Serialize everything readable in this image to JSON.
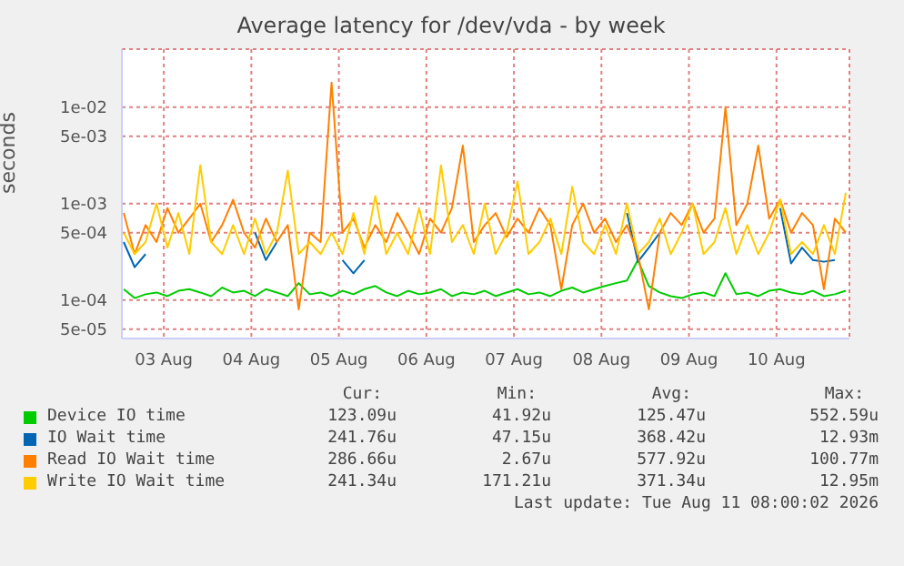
{
  "chart_data": {
    "type": "line",
    "title": "Average latency for /dev/vda - by week",
    "ylabel": "seconds",
    "log": "y",
    "grid": true,
    "legend": "bottom",
    "marker": "none",
    "line_style": "solid",
    "x": [
      "2026-08-03T01:00",
      "2026-08-03T04:00",
      "2026-08-03T07:00",
      "2026-08-03T10:00",
      "2026-08-03T13:00",
      "2026-08-03T16:00",
      "2026-08-03T19:00",
      "2026-08-03T22:00",
      "2026-08-04T01:00",
      "2026-08-04T04:00",
      "2026-08-04T07:00",
      "2026-08-04T10:00",
      "2026-08-04T13:00",
      "2026-08-04T16:00",
      "2026-08-04T19:00",
      "2026-08-04T22:00",
      "2026-08-05T01:00",
      "2026-08-05T04:00",
      "2026-08-05T07:00",
      "2026-08-05T10:00",
      "2026-08-05T13:00",
      "2026-08-05T16:00",
      "2026-08-05T19:00",
      "2026-08-05T22:00",
      "2026-08-06T01:00",
      "2026-08-06T04:00",
      "2026-08-06T07:00",
      "2026-08-06T10:00",
      "2026-08-06T13:00",
      "2026-08-06T16:00",
      "2026-08-06T19:00",
      "2026-08-06T22:00",
      "2026-08-07T01:00",
      "2026-08-07T04:00",
      "2026-08-07T07:00",
      "2026-08-07T10:00",
      "2026-08-07T13:00",
      "2026-08-07T16:00",
      "2026-08-07T19:00",
      "2026-08-07T22:00",
      "2026-08-08T01:00",
      "2026-08-08T04:00",
      "2026-08-08T07:00",
      "2026-08-08T10:00",
      "2026-08-08T13:00",
      "2026-08-08T16:00",
      "2026-08-08T19:00",
      "2026-08-08T22:00",
      "2026-08-09T01:00",
      "2026-08-09T04:00",
      "2026-08-09T07:00",
      "2026-08-09T10:00",
      "2026-08-09T13:00",
      "2026-08-09T16:00",
      "2026-08-09T19:00",
      "2026-08-09T22:00",
      "2026-08-10T01:00",
      "2026-08-10T04:00",
      "2026-08-10T07:00",
      "2026-08-10T10:00",
      "2026-08-10T13:00",
      "2026-08-10T16:00",
      "2026-08-10T19:00",
      "2026-08-10T22:00",
      "2026-08-11T01:00",
      "2026-08-11T04:00",
      "2026-08-11T07:00"
    ],
    "xlim": [
      "2026-08-03T00:30",
      "2026-08-11T08:00"
    ],
    "xticks": [
      {
        "value": "2026-08-03T12:00",
        "label": "03 Aug"
      },
      {
        "value": "2026-08-04T12:00",
        "label": "04 Aug"
      },
      {
        "value": "2026-08-05T12:00",
        "label": "05 Aug"
      },
      {
        "value": "2026-08-06T12:00",
        "label": "06 Aug"
      },
      {
        "value": "2026-08-07T12:00",
        "label": "07 Aug"
      },
      {
        "value": "2026-08-08T12:00",
        "label": "08 Aug"
      },
      {
        "value": "2026-08-09T12:00",
        "label": "09 Aug"
      },
      {
        "value": "2026-08-10T12:00",
        "label": "10 Aug"
      }
    ],
    "ylim": [
      4e-05,
      0.04
    ],
    "yticks": [
      {
        "value": 5e-05,
        "label": "5e-05"
      },
      {
        "value": 0.0001,
        "label": "1e-04"
      },
      {
        "value": 0.0005,
        "label": "5e-04"
      },
      {
        "value": 0.001,
        "label": "1e-03"
      },
      {
        "value": 0.005,
        "label": "5e-03"
      },
      {
        "value": 0.01,
        "label": "1e-02"
      }
    ],
    "series": [
      {
        "name": "Device IO time",
        "color": "#00cc00",
        "values": [
          0.00013,
          0.000105,
          0.000115,
          0.00012,
          0.00011,
          0.000125,
          0.00013,
          0.00012,
          0.00011,
          0.000135,
          0.00012,
          0.000125,
          0.00011,
          0.00013,
          0.00012,
          0.00011,
          0.00015,
          0.000115,
          0.00012,
          0.00011,
          0.000125,
          0.000115,
          0.00013,
          0.00014,
          0.00012,
          0.00011,
          0.000125,
          0.000115,
          0.00012,
          0.00013,
          0.00011,
          0.00012,
          0.000115,
          0.000125,
          0.00011,
          0.00012,
          0.00013,
          0.000115,
          0.00012,
          0.00011,
          0.000125,
          0.000135,
          0.00012,
          0.00013,
          0.00014,
          0.00015,
          0.00016,
          0.00026,
          0.00014,
          0.00012,
          0.00011,
          0.000105,
          0.000115,
          0.00012,
          0.00011,
          0.00019,
          0.000115,
          0.00012,
          0.00011,
          0.000125,
          0.00013,
          0.00012,
          0.000115,
          0.000125,
          0.00011,
          0.000115,
          0.000125
        ]
      },
      {
        "name": "IO Wait time",
        "color": "#0066b3",
        "values": [
          0.0004,
          0.00022,
          0.0003,
          null,
          null,
          null,
          null,
          null,
          null,
          null,
          null,
          null,
          0.0005,
          0.00026,
          0.0004,
          null,
          null,
          null,
          null,
          null,
          0.00026,
          0.00019,
          0.00026,
          null,
          null,
          null,
          null,
          null,
          null,
          null,
          null,
          null,
          null,
          null,
          null,
          null,
          null,
          null,
          null,
          null,
          null,
          null,
          null,
          null,
          null,
          null,
          0.0008,
          0.00025,
          0.00035,
          0.0005,
          null,
          null,
          null,
          null,
          null,
          null,
          null,
          null,
          null,
          null,
          0.0009,
          0.00024,
          0.00035,
          0.00026,
          0.00025,
          0.00026,
          null
        ]
      },
      {
        "name": "Read IO Wait time",
        "color": "#ff8000",
        "values": [
          0.0008,
          0.0003,
          0.0006,
          0.0004,
          0.0009,
          0.0005,
          0.0007,
          0.001,
          0.0004,
          0.0006,
          0.0011,
          0.0005,
          0.00035,
          0.0007,
          0.0004,
          0.0006,
          8e-05,
          0.0005,
          0.0004,
          0.018,
          0.0005,
          0.0007,
          0.00035,
          0.0006,
          0.0004,
          0.0008,
          0.0005,
          0.0003,
          0.0007,
          0.0005,
          0.0009,
          0.004,
          0.0004,
          0.0006,
          0.0008,
          0.00045,
          0.0007,
          0.0005,
          0.0009,
          0.0006,
          0.00013,
          0.0006,
          0.001,
          0.0005,
          0.0007,
          0.0004,
          0.0006,
          0.0003,
          8e-05,
          0.0005,
          0.0008,
          0.0006,
          0.001,
          0.0005,
          0.0007,
          0.01,
          0.0006,
          0.001,
          0.004,
          0.0007,
          0.0011,
          0.0005,
          0.0008,
          0.0006,
          0.00013,
          0.0007,
          0.0005
        ]
      },
      {
        "name": "Write IO Wait time",
        "color": "#ffcc00",
        "values": [
          0.0005,
          0.0003,
          0.0004,
          0.001,
          0.00035,
          0.0008,
          0.0003,
          0.0025,
          0.0004,
          0.0003,
          0.0006,
          0.0003,
          0.0007,
          0.0003,
          0.0005,
          0.0022,
          0.0003,
          0.0004,
          0.0003,
          0.0005,
          0.0003,
          0.0008,
          0.0003,
          0.0012,
          0.0003,
          0.0005,
          0.0003,
          0.0009,
          0.0003,
          0.0025,
          0.0004,
          0.0006,
          0.0003,
          0.001,
          0.0003,
          0.0005,
          0.0017,
          0.0003,
          0.0004,
          0.0007,
          0.0003,
          0.0015,
          0.0004,
          0.0003,
          0.0006,
          0.0003,
          0.001,
          0.0003,
          0.0004,
          0.0007,
          0.0003,
          0.0005,
          0.001,
          0.0003,
          0.0004,
          0.0009,
          0.0003,
          0.0006,
          0.0003,
          0.0005,
          0.0011,
          0.0003,
          0.0004,
          0.0003,
          0.0006,
          0.0003,
          0.0013
        ]
      }
    ],
    "annotations": [
      "Cur:",
      "Min:",
      "Avg:",
      "Max:",
      "123.09u",
      "41.92u",
      "125.47u",
      "552.59u",
      "241.76u",
      "47.15u",
      "368.42u",
      "12.93m",
      "286.66u",
      "2.67u",
      "577.92u",
      "100.77m",
      "241.34u",
      "171.21u",
      "371.34u",
      "12.95m",
      "Last update: Tue Aug 11 08:00:02 2026"
    ]
  }
}
